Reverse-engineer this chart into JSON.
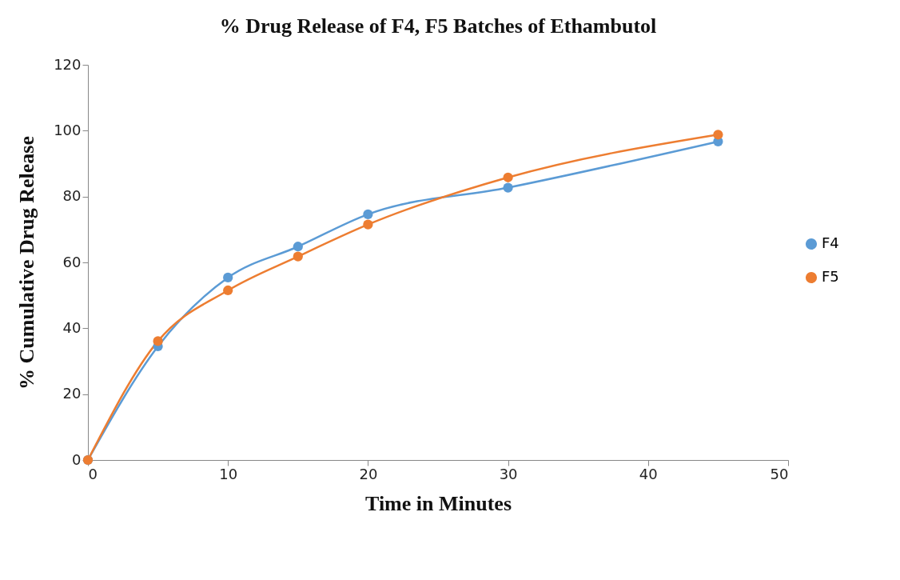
{
  "chart_data": {
    "type": "line",
    "title": "% Drug Release of F4, F5 Batches  of Ethambutol",
    "xlabel": "Time in Minutes",
    "ylabel": "% Cumulative Drug Release",
    "x": [
      0,
      5,
      10,
      15,
      20,
      30,
      45
    ],
    "series": [
      {
        "name": "F4",
        "color": "#5b9bd5",
        "values": [
          0,
          34.5,
          55.4,
          64.8,
          74.6,
          82.7,
          96.7
        ]
      },
      {
        "name": "F5",
        "color": "#ed7d31",
        "values": [
          0,
          36.1,
          51.5,
          61.8,
          71.5,
          85.8,
          98.8
        ]
      }
    ],
    "xlim": [
      0,
      50
    ],
    "xticks": [
      0,
      10,
      20,
      30,
      40,
      50
    ],
    "ylim": [
      0,
      120
    ],
    "yticks": [
      0,
      20,
      40,
      60,
      80,
      100,
      120
    ],
    "grid": false,
    "legend": "right",
    "marker": "circle",
    "line_style": "solid"
  }
}
